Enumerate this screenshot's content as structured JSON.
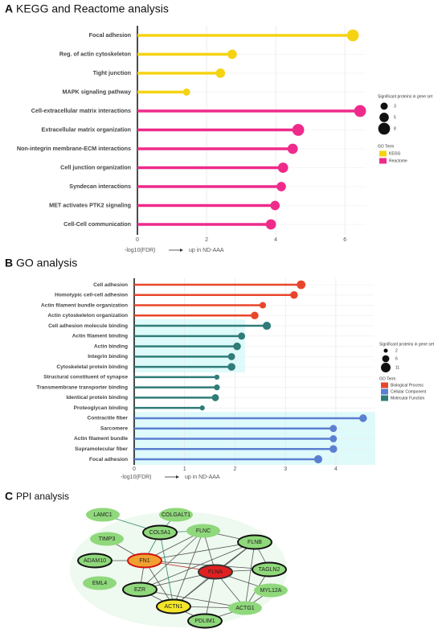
{
  "chart_data": [
    {
      "type": "lollipop",
      "panel": "A",
      "title": "KEGG and Reactome analysis",
      "categories": [
        "Focal adhesion",
        "Reg. of actin cytoskeleton",
        "Tight junction",
        "MAPK signaling pathway",
        "Cell-extracellular matrix interactions",
        "Extracellular matrix organization",
        "Non-integrin membrane-ECM interactions",
        "Cell junction organization",
        "Syndecan interactions",
        "MET activates PTK2 signaling",
        "Cell-Cell communication"
      ],
      "series": [
        {
          "name": "KEGG",
          "color": "#f5d313",
          "values": [
            6.23,
            2.74,
            2.4,
            1.42,
            null,
            null,
            null,
            null,
            null,
            null,
            null
          ],
          "sizes": [
            8,
            5,
            5,
            3,
            null,
            null,
            null,
            null,
            null,
            null,
            null
          ]
        },
        {
          "name": "Reactome",
          "color": "#ee2b8b",
          "values": [
            null,
            null,
            null,
            null,
            6.44,
            4.65,
            4.49,
            4.21,
            4.16,
            3.98,
            3.86
          ],
          "sizes": [
            null,
            null,
            null,
            null,
            8,
            8,
            6,
            6,
            5,
            5,
            6
          ]
        }
      ],
      "xlim": [
        0,
        6.6
      ],
      "xticks": [
        0,
        2,
        4,
        6
      ],
      "grid": true,
      "xlabel": "-log10(FDR)",
      "xlabel_note": "up in  ND-AAA",
      "size_legend": {
        "title": "Significant proteins in gene set",
        "values": [
          3,
          5,
          8
        ]
      },
      "legend_title": "GO Term"
    },
    {
      "type": "lollipop",
      "panel": "B",
      "title": "GO analysis",
      "categories": [
        "Cell adhesion",
        "Homotypic cell-cell adhesion",
        "Actin filament bundle organization",
        "Actin cytoskeleton organization",
        "Cell adhesion molecule binding",
        "Actin filament binding",
        "Actin binding",
        "Integrin binding",
        "Cytoskeletal protein binding",
        "Structural constituent of synapse",
        "Transmembrane transporter binding",
        "Identical protein binding",
        "Proteoglycan binding",
        "Contractile fiber",
        "Sarcomere",
        "Actin filament bundle",
        "Supramolecular fiber",
        "Focal adhesion"
      ],
      "series": [
        {
          "name": "Biological Process",
          "color": "#e8462b",
          "values": [
            3.31,
            3.17,
            2.55,
            2.39,
            null,
            null,
            null,
            null,
            null,
            null,
            null,
            null,
            null,
            null,
            null,
            null,
            null,
            null
          ],
          "sizes": [
            9,
            7,
            5,
            7,
            null,
            null,
            null,
            null,
            null,
            null,
            null,
            null,
            null,
            null,
            null,
            null,
            null,
            null
          ]
        },
        {
          "name": "Cellular Component",
          "color": "#5b7fd1",
          "values": [
            null,
            null,
            null,
            null,
            null,
            null,
            null,
            null,
            null,
            null,
            null,
            null,
            null,
            4.54,
            3.95,
            3.95,
            3.95,
            3.65
          ],
          "sizes": [
            null,
            null,
            null,
            null,
            null,
            null,
            null,
            null,
            null,
            null,
            null,
            null,
            null,
            7,
            6,
            6,
            7,
            8
          ]
        },
        {
          "name": "Molecular Function",
          "color": "#2f7c78",
          "values": [
            null,
            null,
            null,
            null,
            2.63,
            2.13,
            2.04,
            1.93,
            1.93,
            1.64,
            1.64,
            1.61,
            1.35,
            null,
            null,
            null,
            null,
            null
          ],
          "sizes": [
            null,
            null,
            null,
            null,
            8,
            6,
            7,
            6,
            7,
            3,
            4,
            6,
            3,
            null,
            null,
            null,
            null,
            null
          ]
        }
      ],
      "xlim": [
        0,
        4.75
      ],
      "xticks": [
        0,
        1,
        2,
        3,
        4
      ],
      "grid": true,
      "xlabel": "-log10(FDR)",
      "xlabel_note": "up in  ND-AAA",
      "size_legend": {
        "title": "Significant proteins in gene set",
        "values": [
          2,
          6,
          11
        ]
      },
      "legend_title": "GO Term"
    }
  ],
  "network": {
    "panel": "C",
    "title": "PPI analysis",
    "nodes": [
      {
        "label": "LAMC1"
      },
      {
        "label": "COLGALT1"
      },
      {
        "label": "TIMP3"
      },
      {
        "label": "COL5A1"
      },
      {
        "label": "FLNC"
      },
      {
        "label": "FLNB"
      },
      {
        "label": "ADAM10"
      },
      {
        "label": "FN1"
      },
      {
        "label": "FLNA"
      },
      {
        "label": "TAGLN2"
      },
      {
        "label": "EML4"
      },
      {
        "label": "EZR"
      },
      {
        "label": "MYL12A"
      },
      {
        "label": "ACTN1"
      },
      {
        "label": "ACTG1"
      },
      {
        "label": "PDLIM1"
      }
    ]
  }
}
